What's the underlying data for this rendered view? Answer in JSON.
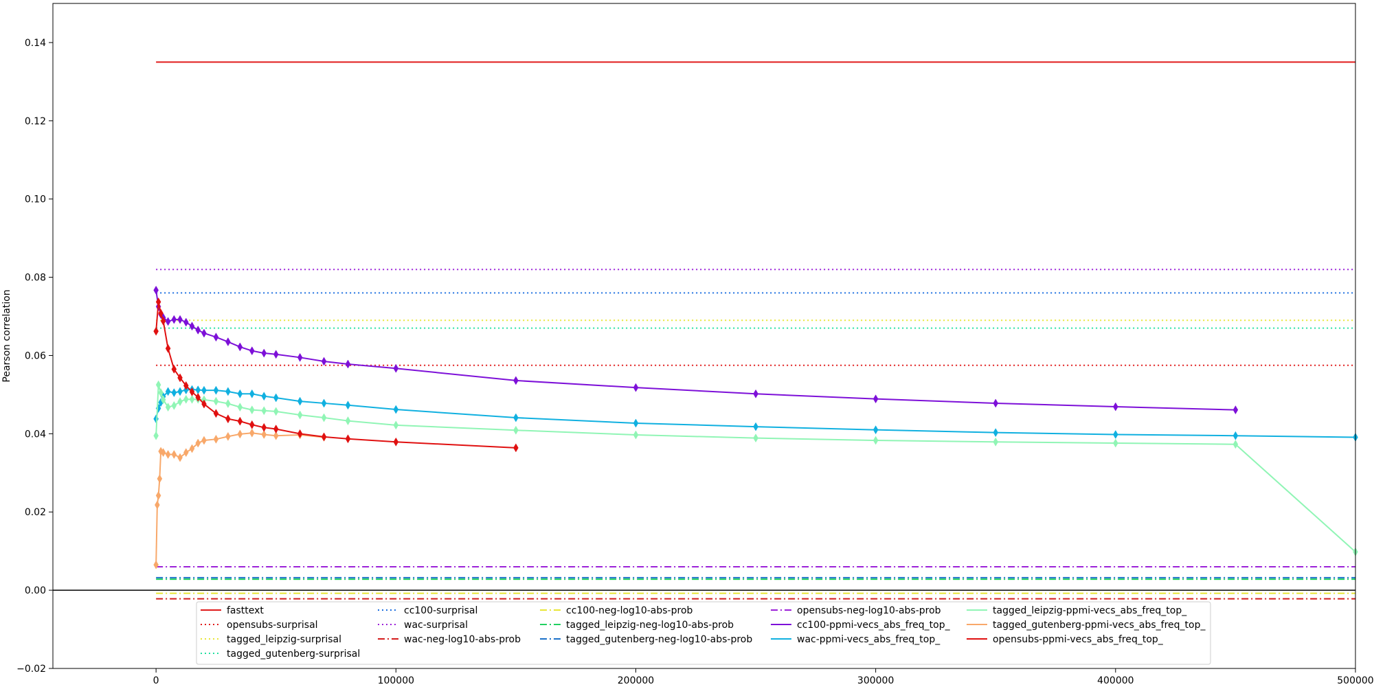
{
  "chart_data": {
    "type": "line",
    "title": "",
    "xlabel": "",
    "ylabel": "Pearson correlation",
    "xlim": [
      -43000,
      500000
    ],
    "ylim": [
      -0.02,
      0.15
    ],
    "x_ticks": [
      0,
      100000,
      200000,
      300000,
      400000,
      500000
    ],
    "x_tick_labels": [
      "0",
      "100000",
      "200000",
      "300000",
      "400000",
      "500000"
    ],
    "y_ticks": [
      -0.02,
      0.0,
      0.02,
      0.04,
      0.06,
      0.08,
      0.1,
      0.12,
      0.14
    ],
    "y_tick_labels": [
      "−0.02",
      "0.00",
      "0.02",
      "0.04",
      "0.06",
      "0.08",
      "0.10",
      "0.12",
      "0.14"
    ],
    "legend_position": "bottom-center",
    "grid": false,
    "zero_line_color": "#000000",
    "hlines": [
      {
        "name": "fasttext",
        "y": 0.135,
        "color": "#e01a1a",
        "dash": "solid",
        "x_start": 0
      },
      {
        "name": "opensubs-surprisal",
        "y": 0.0575,
        "color": "#e01a1a",
        "dash": "dotted",
        "x_start": 0
      },
      {
        "name": "tagged_leipzig-surprisal",
        "y": 0.069,
        "color": "#e8e635",
        "dash": "dotted",
        "x_start": 0
      },
      {
        "name": "tagged_gutenberg-surprisal",
        "y": 0.067,
        "color": "#21e0a0",
        "dash": "dotted",
        "x_start": 0
      },
      {
        "name": "cc100-surprisal",
        "y": 0.076,
        "color": "#1a6de0",
        "dash": "dotted",
        "x_start": 0
      },
      {
        "name": "wac-surprisal",
        "y": 0.082,
        "color": "#9b20d8",
        "dash": "dotted",
        "x_start": 0
      },
      {
        "name": "wac-neg-log10-abs-prob",
        "y": -0.0022,
        "color": "#d41a1a",
        "dash": "dashdot",
        "x_start": 0
      },
      {
        "name": "cc100-neg-log10-abs-prob",
        "y": -0.0008,
        "color": "#e8e635",
        "dash": "dashdot",
        "x_start": 0
      },
      {
        "name": "tagged_leipzig-neg-log10-abs-prob",
        "y": 0.0028,
        "color": "#21d060",
        "dash": "dashdot",
        "x_start": 0
      },
      {
        "name": "tagged_gutenberg-neg-log10-abs-prob",
        "y": 0.0032,
        "color": "#1a70c8",
        "dash": "dashdot",
        "x_start": 0
      },
      {
        "name": "opensubs-neg-log10-abs-prob",
        "y": 0.006,
        "color": "#9b20d8",
        "dash": "dashdot",
        "x_start": 0
      }
    ],
    "series": [
      {
        "name": "cc100-ppmi-vecs_abs_freq_top_",
        "color": "#7d10d8",
        "x": [
          0,
          1000,
          2000,
          3000,
          5000,
          7500,
          10000,
          12500,
          15000,
          17500,
          20000,
          25000,
          30000,
          35000,
          40000,
          45000,
          50000,
          60000,
          70000,
          80000,
          100000,
          150000,
          200000,
          250000,
          300000,
          350000,
          400000,
          450000
        ],
        "y": [
          0.0767,
          0.0725,
          0.0705,
          0.0697,
          0.0687,
          0.0692,
          0.0692,
          0.0685,
          0.0675,
          0.0665,
          0.0657,
          0.0647,
          0.0635,
          0.0622,
          0.0612,
          0.0606,
          0.0603,
          0.0595,
          0.0585,
          0.0578,
          0.0567,
          0.0536,
          0.0518,
          0.0502,
          0.0489,
          0.0478,
          0.0469,
          0.0461
        ]
      },
      {
        "name": "wac-ppmi-vecs_abs_freq_top_",
        "color": "#10b0e0",
        "x": [
          0,
          1000,
          2000,
          3000,
          5000,
          7500,
          10000,
          12500,
          15000,
          17500,
          20000,
          25000,
          30000,
          35000,
          40000,
          45000,
          50000,
          60000,
          70000,
          80000,
          100000,
          150000,
          200000,
          250000,
          300000,
          350000,
          400000,
          450000,
          500000
        ],
        "y": [
          0.0438,
          0.0465,
          0.048,
          0.0495,
          0.0508,
          0.0505,
          0.0508,
          0.0512,
          0.0513,
          0.0512,
          0.0511,
          0.0511,
          0.0508,
          0.0502,
          0.0502,
          0.0496,
          0.0492,
          0.0483,
          0.0478,
          0.0473,
          0.0462,
          0.0441,
          0.0427,
          0.0418,
          0.041,
          0.0403,
          0.0398,
          0.0395,
          0.0391
        ]
      },
      {
        "name": "tagged_leipzig-ppmi-vecs_abs_freq_top_",
        "color": "#90f5b5",
        "x": [
          0,
          1000,
          2000,
          3000,
          5000,
          7500,
          10000,
          12500,
          15000,
          17500,
          20000,
          25000,
          30000,
          35000,
          40000,
          45000,
          50000,
          60000,
          70000,
          80000,
          100000,
          150000,
          200000,
          250000,
          300000,
          350000,
          400000,
          450000,
          500000
        ],
        "y": [
          0.0395,
          0.0525,
          0.0505,
          0.0487,
          0.0468,
          0.0472,
          0.0482,
          0.0488,
          0.0488,
          0.0488,
          0.0487,
          0.0483,
          0.0477,
          0.0468,
          0.0461,
          0.0459,
          0.0457,
          0.0448,
          0.0441,
          0.0433,
          0.0422,
          0.0409,
          0.0397,
          0.0389,
          0.0383,
          0.0379,
          0.0376,
          0.0373,
          0.0098
        ]
      },
      {
        "name": "tagged_gutenberg-ppmi-vecs_abs_freq_top_",
        "color": "#f8a86a",
        "x": [
          0,
          500,
          1000,
          1500,
          2000,
          3000,
          5000,
          7500,
          10000,
          12500,
          15000,
          17500,
          20000,
          25000,
          30000,
          35000,
          40000,
          45000,
          50000,
          60000,
          70000
        ],
        "y": [
          0.0065,
          0.0218,
          0.0242,
          0.0285,
          0.0355,
          0.0352,
          0.0347,
          0.0347,
          0.0339,
          0.0352,
          0.0362,
          0.0376,
          0.0383,
          0.0386,
          0.0393,
          0.0399,
          0.0402,
          0.0398,
          0.0395,
          0.0397,
          0.0391
        ]
      },
      {
        "name": "opensubs-ppmi-vecs_abs_freq_top_",
        "color": "#e01010",
        "x": [
          0,
          1000,
          2000,
          3000,
          5000,
          7500,
          10000,
          12500,
          15000,
          17500,
          20000,
          25000,
          30000,
          35000,
          40000,
          45000,
          50000,
          60000,
          70000,
          80000,
          100000,
          150000
        ],
        "y": [
          0.0662,
          0.0737,
          0.0708,
          0.0688,
          0.0618,
          0.0565,
          0.0543,
          0.0523,
          0.0507,
          0.0493,
          0.0476,
          0.0452,
          0.0438,
          0.0432,
          0.0423,
          0.0416,
          0.0412,
          0.04,
          0.0392,
          0.0387,
          0.0379,
          0.0364
        ]
      }
    ],
    "legend_columns": [
      [
        {
          "name": "fasttext",
          "color": "#e01a1a",
          "dash": "solid"
        },
        {
          "name": "opensubs-surprisal",
          "color": "#e01a1a",
          "dash": "dotted"
        },
        {
          "name": "tagged_leipzig-surprisal",
          "color": "#e8e635",
          "dash": "dotted"
        },
        {
          "name": "tagged_gutenberg-surprisal",
          "color": "#21e0a0",
          "dash": "dotted"
        }
      ],
      [
        {
          "name": "cc100-surprisal",
          "color": "#1a6de0",
          "dash": "dotted"
        },
        {
          "name": "wac-surprisal",
          "color": "#9b20d8",
          "dash": "dotted"
        },
        {
          "name": "wac-neg-log10-abs-prob",
          "color": "#d41a1a",
          "dash": "dashdot"
        }
      ],
      [
        {
          "name": "cc100-neg-log10-abs-prob",
          "color": "#e8e635",
          "dash": "dashdot"
        },
        {
          "name": "tagged_leipzig-neg-log10-abs-prob",
          "color": "#21d060",
          "dash": "dashdot"
        },
        {
          "name": "tagged_gutenberg-neg-log10-abs-prob",
          "color": "#1a70c8",
          "dash": "dashdot"
        }
      ],
      [
        {
          "name": "opensubs-neg-log10-abs-prob",
          "color": "#9b20d8",
          "dash": "dashdot"
        },
        {
          "name": "cc100-ppmi-vecs_abs_freq_top_",
          "color": "#7d10d8",
          "dash": "solid"
        },
        {
          "name": "wac-ppmi-vecs_abs_freq_top_",
          "color": "#10b0e0",
          "dash": "solid"
        }
      ],
      [
        {
          "name": "tagged_leipzig-ppmi-vecs_abs_freq_top_",
          "color": "#90f5b5",
          "dash": "solid"
        },
        {
          "name": "tagged_gutenberg-ppmi-vecs_abs_freq_top_",
          "color": "#f8a86a",
          "dash": "solid"
        },
        {
          "name": "opensubs-ppmi-vecs_abs_freq_top_",
          "color": "#e01010",
          "dash": "solid"
        }
      ]
    ]
  }
}
